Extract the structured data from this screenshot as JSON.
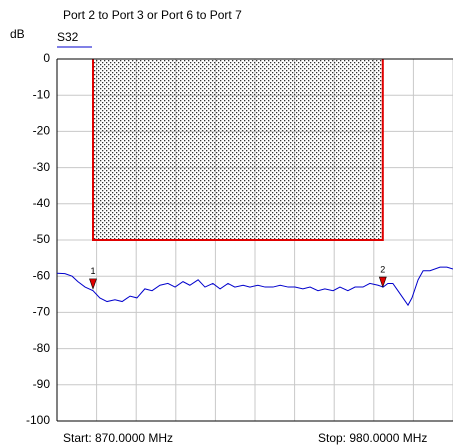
{
  "chart_data": {
    "type": "line",
    "title": "Port 2 to Port 3 or Port 6 to Port 7",
    "ylabel": "dB",
    "start_label": "Start: 870.0000 MHz",
    "stop_label": "Stop: 980.0000 MHz",
    "xlim": [
      870,
      980
    ],
    "xticks": [
      870,
      881,
      892,
      903,
      914,
      925,
      936,
      947,
      958,
      969,
      980
    ],
    "ylim": [
      -100,
      0
    ],
    "yticks": [
      0,
      -10,
      -20,
      -30,
      -40,
      -50,
      -60,
      -70,
      -80,
      -90,
      -100
    ],
    "grid": true,
    "series": [
      {
        "name": "S32",
        "color": "#0000cc",
        "x": [
          870,
          872.2,
          874.2,
          875.8,
          877.8,
          880,
          881.9,
          883.9,
          886.1,
          888.1,
          890.3,
          892.2,
          894.4,
          896.4,
          898.6,
          900.8,
          902.8,
          905,
          906.9,
          909.2,
          911.1,
          913.3,
          915.3,
          917.5,
          919.4,
          921.7,
          923.6,
          925.8,
          927.8,
          930,
          932,
          934.2,
          936.1,
          938.3,
          940.3,
          942.5,
          944.4,
          946.7,
          948.6,
          950.8,
          952.8,
          955,
          956.9,
          959.2,
          960.6,
          961.9,
          963.3,
          964.7,
          966.1,
          967.5,
          968.6,
          970.3,
          971.7,
          973.6,
          976.4,
          978.3,
          980
        ],
        "values": [
          -59.2,
          -59.3,
          -60,
          -61.5,
          -63,
          -64,
          -66,
          -67,
          -66.5,
          -67,
          -65.5,
          -66,
          -63.5,
          -64,
          -62.5,
          -62,
          -63,
          -61.5,
          -62.5,
          -61,
          -63,
          -62,
          -63.5,
          -62,
          -63,
          -62.5,
          -63,
          -62.5,
          -63,
          -63,
          -62.5,
          -63,
          -63,
          -63.5,
          -63,
          -64,
          -63.5,
          -64,
          -63,
          -64,
          -63,
          -63,
          -62,
          -62.5,
          -63,
          -62,
          -62,
          -64,
          -66,
          -68,
          -66,
          -61,
          -58.5,
          -58.5,
          -57.5,
          -57.5,
          -58
        ]
      }
    ],
    "mask": {
      "color": "#e00000",
      "x": [
        880,
        960.5
      ],
      "top": 0,
      "bottom": -50
    },
    "markers": [
      {
        "label": "1",
        "x": 880,
        "y": -63.5,
        "color": "#e00000"
      },
      {
        "label": "2",
        "x": 960.5,
        "y": -63,
        "color": "#e00000"
      }
    ]
  }
}
